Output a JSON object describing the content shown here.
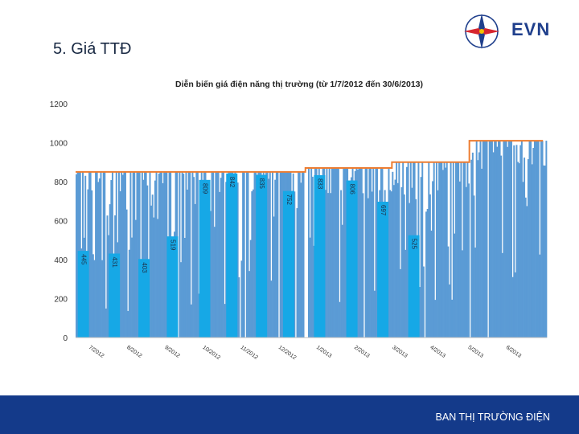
{
  "slide": {
    "title": "5. Giá TTĐ",
    "logo_text": "EVN",
    "footer": "BAN THỊ TRƯỜNG ĐIỆN"
  },
  "colors": {
    "bar": "#5b9bd5",
    "highlight": "#16a8e6",
    "cap_line": "#ed7d31",
    "footer_bg": "#143a8a",
    "logo_blue": "#1f3f8c",
    "logo_red": "#d7262e"
  },
  "chart_data": {
    "type": "bar",
    "title": "Diễn biến giá điện năng thị trường (từ 1/7/2012 đến 30/6/2013)",
    "xlabel": "",
    "ylabel": "",
    "ylim": [
      0,
      1200
    ],
    "yticks": [
      0,
      200,
      400,
      600,
      800,
      1000,
      1200
    ],
    "grid": false,
    "x_tick_labels": [
      "7/2012",
      "8/2012",
      "9/2012",
      "10/2012",
      "11/2012",
      "12/2012",
      "1/2013",
      "2/2013",
      "3/2013",
      "4/2013",
      "5/2013",
      "6/2013"
    ],
    "price_cap": [
      {
        "from_day": 0,
        "to_day": 178,
        "value": 850
      },
      {
        "from_day": 178,
        "to_day": 245,
        "value": 870
      },
      {
        "from_day": 245,
        "to_day": 305,
        "value": 900
      },
      {
        "from_day": 305,
        "to_day": 362,
        "value": 1010
      }
    ],
    "highlighted_values": [
      {
        "day": 6,
        "value": 445
      },
      {
        "day": 30,
        "value": 431
      },
      {
        "day": 53,
        "value": 403
      },
      {
        "day": 75,
        "value": 519
      },
      {
        "day": 100,
        "value": 809
      },
      {
        "day": 121,
        "value": 842
      },
      {
        "day": 144,
        "value": 835
      },
      {
        "day": 165,
        "value": 752
      },
      {
        "day": 189,
        "value": 833
      },
      {
        "day": 214,
        "value": 806
      },
      {
        "day": 238,
        "value": 697
      },
      {
        "day": 262,
        "value": 525
      }
    ]
  }
}
